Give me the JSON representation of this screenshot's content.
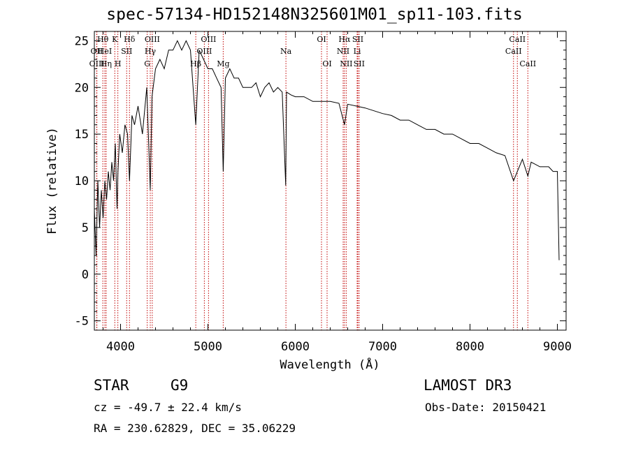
{
  "chart_data": {
    "type": "line",
    "title": "spec-57134-HD152148N325601M01_sp11-103.fits",
    "xlabel": "Wavelength (Å)",
    "ylabel": "Flux (relative)",
    "xlim": [
      3700,
      9100
    ],
    "ylim": [
      -6,
      26
    ],
    "xticks": [
      4000,
      5000,
      6000,
      7000,
      8000,
      9000
    ],
    "yticks": [
      -5,
      0,
      5,
      10,
      15,
      20,
      25
    ],
    "grid": false,
    "series": [
      {
        "name": "flux",
        "x": [
          3700,
          3720,
          3740,
          3760,
          3780,
          3800,
          3820,
          3840,
          3860,
          3880,
          3900,
          3920,
          3940,
          3960,
          3970,
          3990,
          4020,
          4050,
          4080,
          4102,
          4130,
          4160,
          4200,
          4250,
          4300,
          4340,
          4360,
          4400,
          4450,
          4500,
          4550,
          4600,
          4650,
          4700,
          4750,
          4800,
          4861,
          4900,
          4950,
          5000,
          5050,
          5100,
          5150,
          5175,
          5200,
          5250,
          5300,
          5350,
          5400,
          5450,
          5500,
          5550,
          5600,
          5650,
          5700,
          5750,
          5800,
          5850,
          5890,
          5900,
          5950,
          6000,
          6100,
          6200,
          6300,
          6400,
          6500,
          6563,
          6600,
          6700,
          6800,
          6900,
          7000,
          7100,
          7200,
          7300,
          7400,
          7500,
          7600,
          7700,
          7800,
          7900,
          8000,
          8100,
          8200,
          8300,
          8400,
          8498,
          8542,
          8600,
          8662,
          8700,
          8800,
          8850,
          8900,
          8950,
          9000,
          9020
        ],
        "values": [
          7,
          2,
          10,
          5,
          9,
          6,
          10,
          8,
          11,
          9,
          12,
          10,
          14,
          7,
          11,
          15,
          13,
          16,
          15,
          10,
          17,
          16,
          18,
          15,
          20,
          9,
          19,
          22,
          23,
          22,
          24,
          24,
          25,
          24,
          25,
          24,
          16,
          24,
          23,
          22,
          22,
          21,
          20,
          11,
          21,
          22,
          21,
          21,
          20,
          20,
          20,
          20.5,
          19,
          20,
          20.5,
          19.5,
          20,
          19.5,
          9.5,
          19.5,
          19.2,
          19,
          19,
          18.5,
          18.5,
          18.5,
          18.3,
          16,
          18.2,
          18,
          17.8,
          17.5,
          17.2,
          17,
          16.5,
          16.5,
          16,
          15.5,
          15.5,
          15,
          15,
          14.5,
          14,
          14,
          13.5,
          13,
          12.7,
          10,
          11,
          12.3,
          10.5,
          12,
          11.5,
          11.5,
          11.5,
          11,
          11,
          1.5
        ]
      }
    ],
    "lines": [
      {
        "label": "Hθ",
        "x": 3797,
        "row": 0,
        "top": true
      },
      {
        "label": "K",
        "x": 3934,
        "row": 0,
        "top": true
      },
      {
        "label": "Hδ",
        "x": 4102,
        "row": 0,
        "top": true
      },
      {
        "label": "OII",
        "x": 3727,
        "row": 1,
        "top": true
      },
      {
        "label": "HeI",
        "x": 3820,
        "row": 1,
        "top": true
      },
      {
        "label": "SII",
        "x": 4070,
        "row": 1,
        "top": true
      },
      {
        "label": "OIII",
        "x": 3729,
        "row": 2,
        "top": true
      },
      {
        "label": "Hη",
        "x": 3835,
        "row": 2,
        "top": true
      },
      {
        "label": "H",
        "x": 3969,
        "row": 2,
        "top": true
      },
      {
        "label": "OIII",
        "x": 4363,
        "row": 0,
        "top": true
      },
      {
        "label": "Hγ",
        "x": 4340,
        "row": 1,
        "top": true
      },
      {
        "label": "G",
        "x": 4305,
        "row": 2,
        "top": true
      },
      {
        "label": "OIII",
        "x": 5007,
        "row": 0,
        "top": true
      },
      {
        "label": "OIII",
        "x": 4959,
        "row": 1,
        "top": true
      },
      {
        "label": "Hβ",
        "x": 4861,
        "row": 2,
        "top": true
      },
      {
        "label": "Mg",
        "x": 5175,
        "row": 2,
        "top": true
      },
      {
        "label": "Na",
        "x": 5893,
        "row": 1,
        "top": true
      },
      {
        "label": "OI",
        "x": 6300,
        "row": 0,
        "top": true
      },
      {
        "label": "OI",
        "x": 6364,
        "row": 2,
        "top": true
      },
      {
        "label": "Hα",
        "x": 6563,
        "row": 0,
        "top": true
      },
      {
        "label": "SII",
        "x": 6716,
        "row": 0,
        "top": true
      },
      {
        "label": "NII",
        "x": 6548,
        "row": 1,
        "top": true
      },
      {
        "label": "Li",
        "x": 6708,
        "row": 1,
        "top": true
      },
      {
        "label": "NII",
        "x": 6583,
        "row": 2,
        "top": true
      },
      {
        "label": "SII",
        "x": 6731,
        "row": 2,
        "top": true
      },
      {
        "label": "CaII",
        "x": 8542,
        "row": 0,
        "top": true
      },
      {
        "label": "CaII",
        "x": 8498,
        "row": 1,
        "top": true
      },
      {
        "label": "CaII",
        "x": 8662,
        "row": 2,
        "top": true
      }
    ]
  },
  "info": {
    "class": "STAR",
    "subclass": "G9",
    "survey": "LAMOST DR3",
    "cz": "cz = -49.7 ± 22.4 km/s",
    "obs_date": "Obs-Date: 20150421",
    "coords": "RA = 230.62829, DEC =  35.06229"
  }
}
